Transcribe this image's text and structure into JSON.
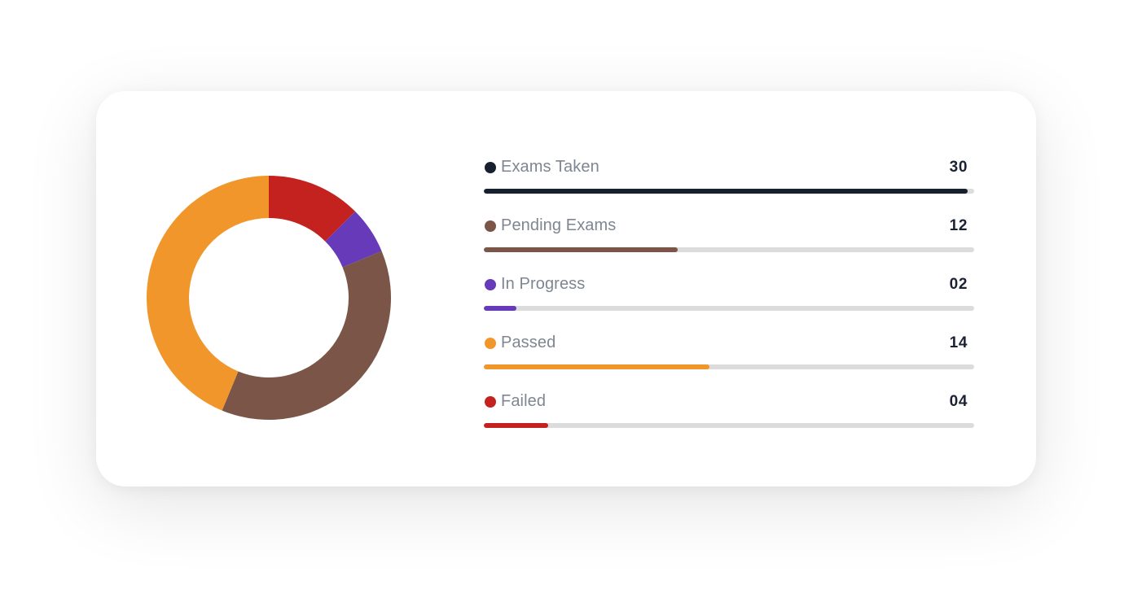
{
  "chart_data": {
    "type": "pie",
    "style": "donut",
    "max": 30,
    "slices": [
      {
        "label": "Exams Taken",
        "value_label": "30",
        "value": 30,
        "color": "#18202f",
        "in_donut": false
      },
      {
        "label": "Pending Exams",
        "value_label": "12",
        "value": 12,
        "color": "#7a5548",
        "in_donut": true
      },
      {
        "label": "In Progress",
        "value_label": "02",
        "value": 2,
        "color": "#663ab8",
        "in_donut": true
      },
      {
        "label": "Passed",
        "value_label": "14",
        "value": 14,
        "color": "#f0962a",
        "in_donut": true
      },
      {
        "label": "Failed",
        "value_label": "04",
        "value": 4,
        "color": "#c4221f",
        "in_donut": true
      }
    ],
    "legend_position": "right",
    "track_color": "#dcdcdc"
  }
}
